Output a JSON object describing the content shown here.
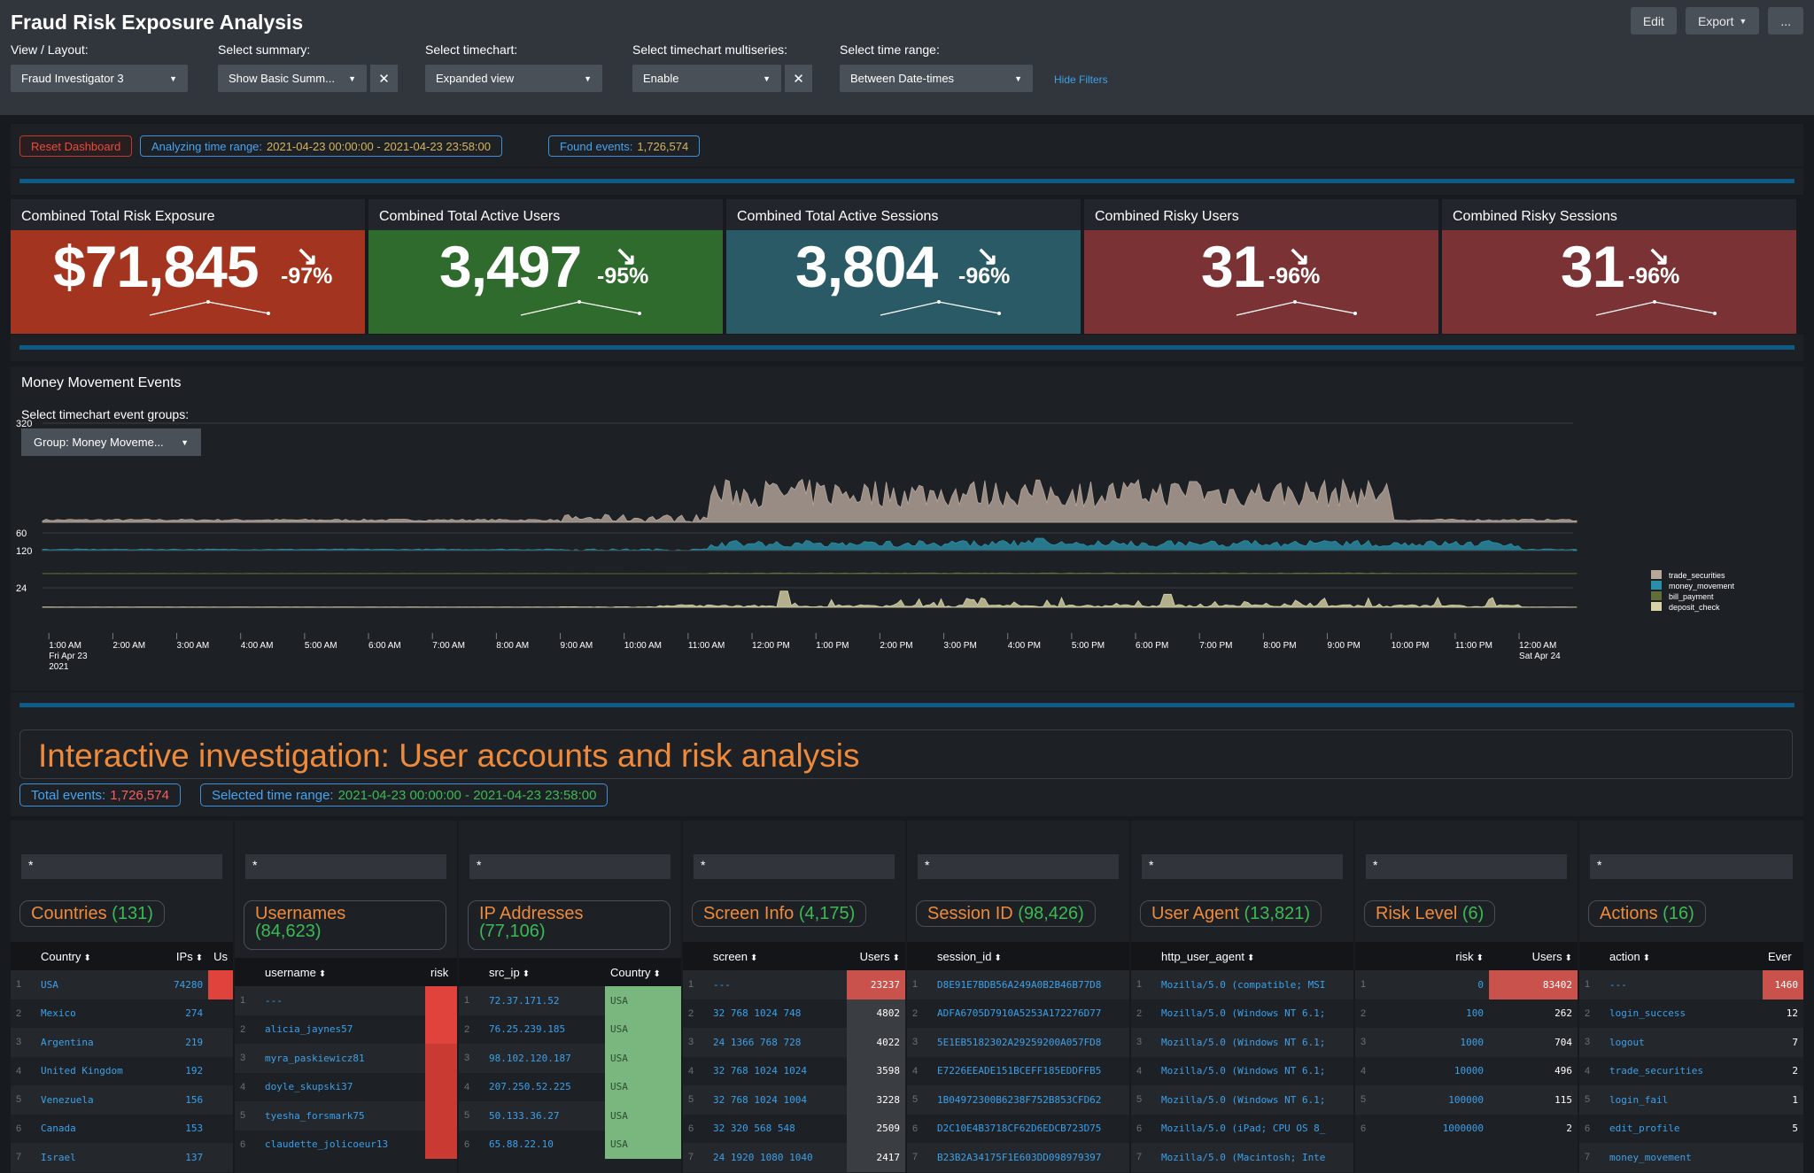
{
  "dashboard": {
    "title": "Fraud Risk Exposure Analysis",
    "buttons": {
      "edit": "Edit",
      "export": "Export",
      "more": "..."
    },
    "filters": [
      {
        "label": "View / Layout:",
        "value": "Fraud Investigator 3",
        "clearable": false
      },
      {
        "label": "Select summary:",
        "value": "Show Basic Summ...",
        "clearable": true
      },
      {
        "label": "Select timechart:",
        "value": "Expanded view",
        "clearable": false
      },
      {
        "label": "Select timechart multiseries:",
        "value": "Enable",
        "clearable": true
      },
      {
        "label": "Select time range:",
        "value": "Between Date-times",
        "clearable": false
      }
    ],
    "hide_filters": "Hide Filters"
  },
  "status": {
    "reset": "Reset Dashboard",
    "range_label": "Analyzing time range:",
    "range_value": "2021-04-23 00:00:00 - 2021-04-23 23:58:00",
    "found_label": "Found events:",
    "found_value": "1,726,574"
  },
  "kpis": [
    {
      "title": "Combined Total Risk Exposure",
      "value": "$71,845",
      "delta": "-97%",
      "color": "#a3341f"
    },
    {
      "title": "Combined Total Active Users",
      "value": "3,497",
      "delta": "-95%",
      "color": "#2e6b2c"
    },
    {
      "title": "Combined Total Active Sessions",
      "value": "3,804",
      "delta": "-96%",
      "color": "#2a5a66"
    },
    {
      "title": "Combined Risky Users",
      "value": "31",
      "delta": "-96%",
      "color": "#7a3235"
    },
    {
      "title": "Combined Risky Sessions",
      "value": "31",
      "delta": "-96%",
      "color": "#7a3235"
    }
  ],
  "timechart": {
    "title": "Money Movement Events",
    "group_label": "Select timechart event groups:",
    "group_value": "Group: Money Moveme..."
  },
  "chart_data": {
    "type": "area",
    "x_ticks": [
      "1:00 AM",
      "2:00 AM",
      "3:00 AM",
      "4:00 AM",
      "5:00 AM",
      "6:00 AM",
      "7:00 AM",
      "8:00 AM",
      "9:00 AM",
      "10:00 AM",
      "11:00 AM",
      "12:00 PM",
      "1:00 PM",
      "2:00 PM",
      "3:00 PM",
      "4:00 PM",
      "5:00 PM",
      "6:00 PM",
      "7:00 PM",
      "8:00 PM",
      "9:00 PM",
      "10:00 PM",
      "11:00 PM",
      "12:00 AM"
    ],
    "x_sub_first": [
      "Fri Apr 23",
      "2021"
    ],
    "x_sub_last": [
      "Sat Apr 24"
    ],
    "series": [
      {
        "name": "trade_securities",
        "color": "#b8a89c",
        "y_max_label": "320",
        "baseline": 8,
        "active": 110,
        "spikes": [
          {
            "t": 18.9,
            "v": 140
          }
        ]
      },
      {
        "name": "money_movement",
        "color": "#2a8fa6",
        "y_max_label": "60",
        "baseline": 4,
        "active": 26,
        "spikes": [
          {
            "t": 16.5,
            "v": 42
          }
        ]
      },
      {
        "name": "bill_payment",
        "color": "#5f6e3a",
        "y_max_label": "120",
        "baseline": 1,
        "active": 3,
        "spikes": [
          {
            "t": 31.2,
            "v": 110
          }
        ]
      },
      {
        "name": "deposit_check",
        "color": "#d9d3a8",
        "y_max_label": "24",
        "baseline": 0.3,
        "active": 3,
        "spikes": [
          {
            "t": 12.5,
            "v": 20
          },
          {
            "t": 18.5,
            "v": 16
          },
          {
            "t": 27.3,
            "v": 18
          }
        ]
      }
    ]
  },
  "investigation": {
    "title": "Interactive investigation: User accounts and risk analysis",
    "total_label": "Total events:",
    "total_value": "1,726,574",
    "range_label": "Selected time range:",
    "range_value": "2021-04-23 00:00:00 - 2021-04-23 23:58:00"
  },
  "panels": [
    {
      "search": "*",
      "title": "Countries",
      "count": "(131)",
      "columns": [
        "Country",
        "IPs",
        "Us"
      ],
      "rows": [
        [
          "USA",
          "74280"
        ],
        [
          "Mexico",
          "274"
        ],
        [
          "Argentina",
          "219"
        ],
        [
          "United Kingdom",
          "192"
        ],
        [
          "Venezuela",
          "156"
        ],
        [
          "Canada",
          "153"
        ],
        [
          "Israel",
          "137"
        ]
      ]
    },
    {
      "search": "*",
      "title": "Usernames",
      "count": "(84,623)",
      "columns": [
        "username",
        "risk"
      ],
      "rows": [
        [
          "---"
        ],
        [
          "alicia_jaynes57"
        ],
        [
          "myra_paskiewicz81"
        ],
        [
          "doyle_skupski37"
        ],
        [
          "tyesha_forsmark75"
        ],
        [
          "claudette_jolicoeur13"
        ]
      ]
    },
    {
      "search": "*",
      "title": "IP Addresses",
      "count": "(77,106)",
      "columns": [
        "src_ip",
        "Country"
      ],
      "rows": [
        [
          "72.37.171.52",
          "USA"
        ],
        [
          "76.25.239.185",
          "USA"
        ],
        [
          "98.102.120.187",
          "USA"
        ],
        [
          "207.250.52.225",
          "USA"
        ],
        [
          "50.133.36.27",
          "USA"
        ],
        [
          "65.88.22.10",
          "USA"
        ]
      ]
    },
    {
      "search": "*",
      "title": "Screen Info",
      "count": "(4,175)",
      "columns": [
        "screen",
        "Users"
      ],
      "rows": [
        [
          "---",
          "23237"
        ],
        [
          "32 768 1024 748",
          "4802"
        ],
        [
          "24 1366 768 728",
          "4022"
        ],
        [
          "32 768 1024 1024",
          "3598"
        ],
        [
          "32 768 1024 1004",
          "3228"
        ],
        [
          "32 320 568 548",
          "2509"
        ],
        [
          "24 1920 1080 1040",
          "2417"
        ]
      ]
    },
    {
      "search": "*",
      "title": "Session ID",
      "count": "(98,426)",
      "columns": [
        "session_id"
      ],
      "rows": [
        [
          "D8E91E7BDB56A249A0B2B46B77D8"
        ],
        [
          "ADFA6705D7910A5253A172276D77"
        ],
        [
          "5E1EB5182302A29259200A057FD8"
        ],
        [
          "E7226EEADE151BCEFF185EDDFFB5"
        ],
        [
          "1B04972300B6238F752B853CFD62"
        ],
        [
          "D2C10E4B3718CF62D6EDCB723D75"
        ],
        [
          "B23B2A34175F1E603DD098979397"
        ]
      ]
    },
    {
      "search": "*",
      "title": "User Agent",
      "count": "(13,821)",
      "columns": [
        "http_user_agent"
      ],
      "rows": [
        [
          "Mozilla/5.0 (compatible; MSI"
        ],
        [
          "Mozilla/5.0 (Windows NT 6.1;"
        ],
        [
          "Mozilla/5.0 (Windows NT 6.1;"
        ],
        [
          "Mozilla/5.0 (Windows NT 6.1;"
        ],
        [
          "Mozilla/5.0 (Windows NT 6.1;"
        ],
        [
          "Mozilla/5.0 (iPad; CPU OS 8_"
        ],
        [
          "Mozilla/5.0 (Macintosh; Inte"
        ]
      ]
    },
    {
      "search": "*",
      "title": "Risk Level",
      "count": "(6)",
      "columns": [
        "risk",
        "Users"
      ],
      "rows": [
        [
          "0",
          "83402"
        ],
        [
          "100",
          "262"
        ],
        [
          "1000",
          "704"
        ],
        [
          "10000",
          "496"
        ],
        [
          "100000",
          "115"
        ],
        [
          "1000000",
          "2"
        ]
      ]
    },
    {
      "search": "*",
      "title": "Actions",
      "count": "(16)",
      "columns": [
        "action",
        "Ever"
      ],
      "rows": [
        [
          "---",
          "1460"
        ],
        [
          "login_success",
          "12"
        ],
        [
          "logout",
          "7"
        ],
        [
          "trade_securities",
          "2"
        ],
        [
          "login_fail",
          "1"
        ],
        [
          "edit_profile",
          "5"
        ],
        [
          "money_movement",
          ""
        ]
      ]
    }
  ]
}
